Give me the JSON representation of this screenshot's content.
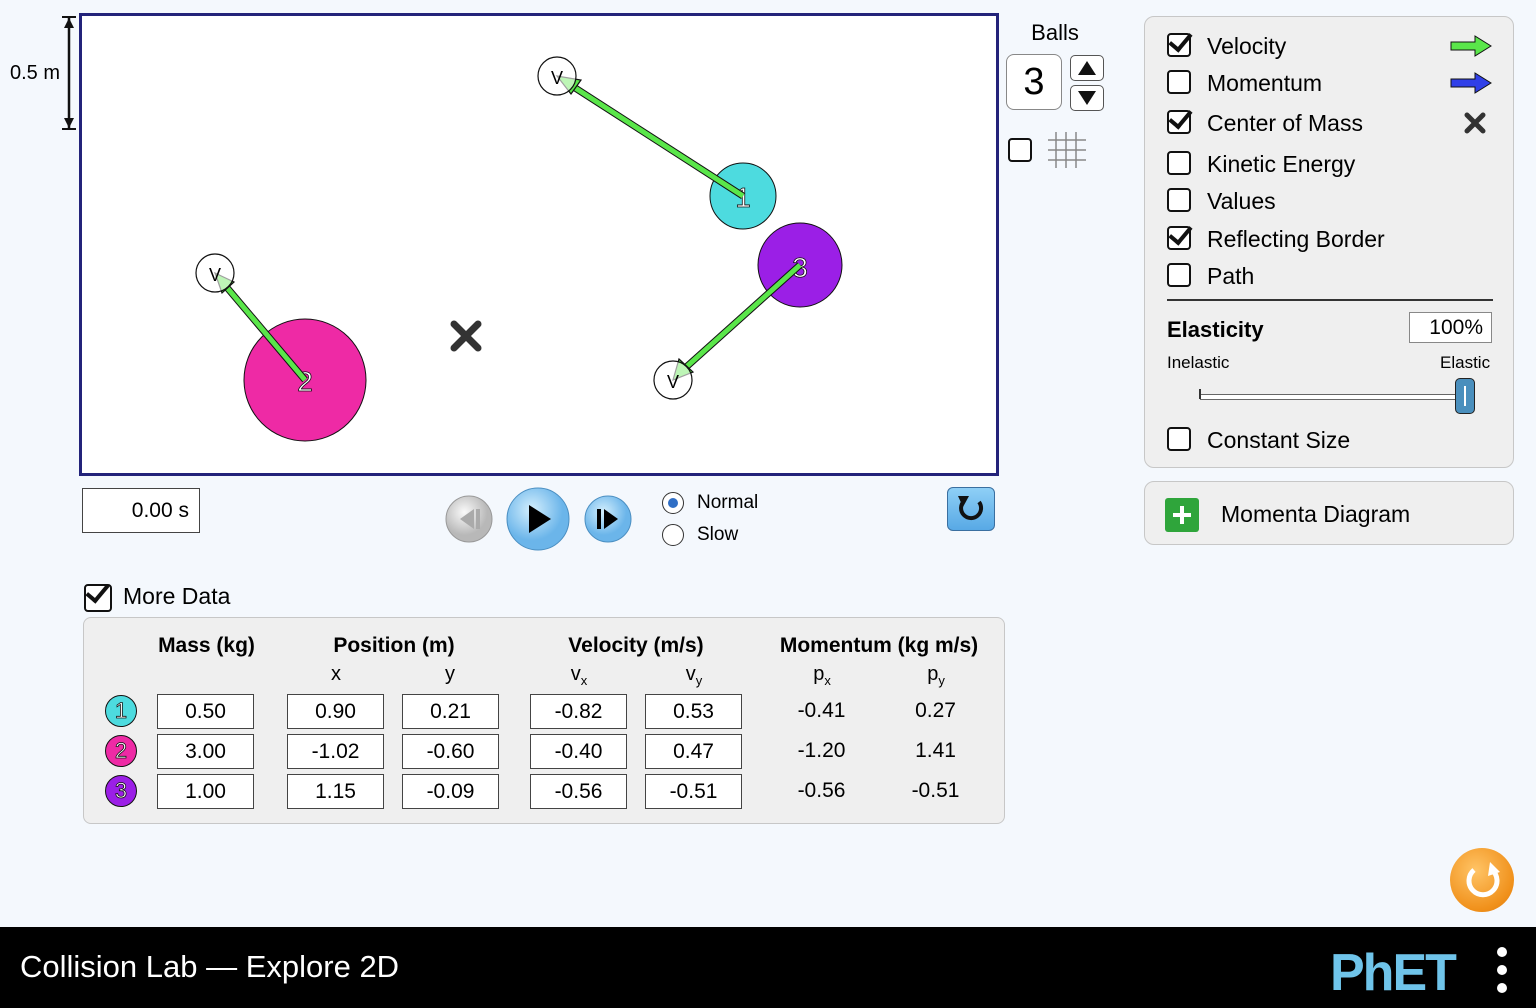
{
  "scale": {
    "label": "0.5 m"
  },
  "balls": {
    "label": "Balls",
    "count": "3"
  },
  "options": {
    "velocity": {
      "label": "Velocity",
      "checked": true
    },
    "momentum": {
      "label": "Momentum",
      "checked": false
    },
    "center_of_mass": {
      "label": "Center of Mass",
      "checked": true
    },
    "kinetic_energy": {
      "label": "Kinetic Energy",
      "checked": false
    },
    "values": {
      "label": "Values",
      "checked": false
    },
    "reflecting_border": {
      "label": "Reflecting Border",
      "checked": true
    },
    "path": {
      "label": "Path",
      "checked": false
    },
    "constant_size": {
      "label": "Constant Size",
      "checked": false
    }
  },
  "elasticity": {
    "label": "Elasticity",
    "value": "100%",
    "min_label": "Inelastic",
    "max_label": "Elastic",
    "level": 1.0
  },
  "momenta_diagram": {
    "label": "Momenta Diagram"
  },
  "time": {
    "value": "0.00 s"
  },
  "speed": {
    "normal": "Normal",
    "slow": "Slow",
    "selected": "Normal"
  },
  "more_data": {
    "label": "More Data",
    "checked": true
  },
  "table": {
    "headers": {
      "mass": "Mass (kg)",
      "position": "Position (m)",
      "velocity": "Velocity (m/s)",
      "momentum": "Momentum (kg m/s)"
    },
    "subheaders": {
      "x": "x",
      "y": "y",
      "vx": "v",
      "vx_sub": "x",
      "vy": "v",
      "vy_sub": "y",
      "px": "p",
      "px_sub": "x",
      "py": "p",
      "py_sub": "y"
    },
    "rows": [
      {
        "id": "1",
        "color": "#4ddbdf",
        "mass": "0.50",
        "x": "0.90",
        "y": "0.21",
        "vx": "-0.82",
        "vy": "0.53",
        "px": "-0.41",
        "py": "0.27"
      },
      {
        "id": "2",
        "color": "#ee2aa5",
        "mass": "3.00",
        "x": "-1.02",
        "y": "-0.60",
        "vx": "-0.40",
        "vy": "0.47",
        "px": "-1.20",
        "py": "1.41"
      },
      {
        "id": "3",
        "color": "#9b1fe6",
        "mass": "1.00",
        "x": "1.15",
        "y": "-0.09",
        "vx": "-0.56",
        "vy": "-0.51",
        "px": "-0.56",
        "py": "-0.51"
      }
    ]
  },
  "play_area": {
    "balls": [
      {
        "label": "1",
        "color": "#4ddbdf",
        "velocity_label": "V"
      },
      {
        "label": "2",
        "color": "#ee2aa5",
        "velocity_label": "V"
      },
      {
        "label": "3",
        "color": "#9b1fe6",
        "velocity_label": "V"
      }
    ]
  },
  "footer": {
    "title": "Collision Lab — Explore 2D",
    "logo": "PhET"
  },
  "colors": {
    "velocity_arrow": "#5ae64a",
    "momentum_arrow": "#3040e8",
    "play_border": "#23237a",
    "accent": "#58a9e5"
  }
}
